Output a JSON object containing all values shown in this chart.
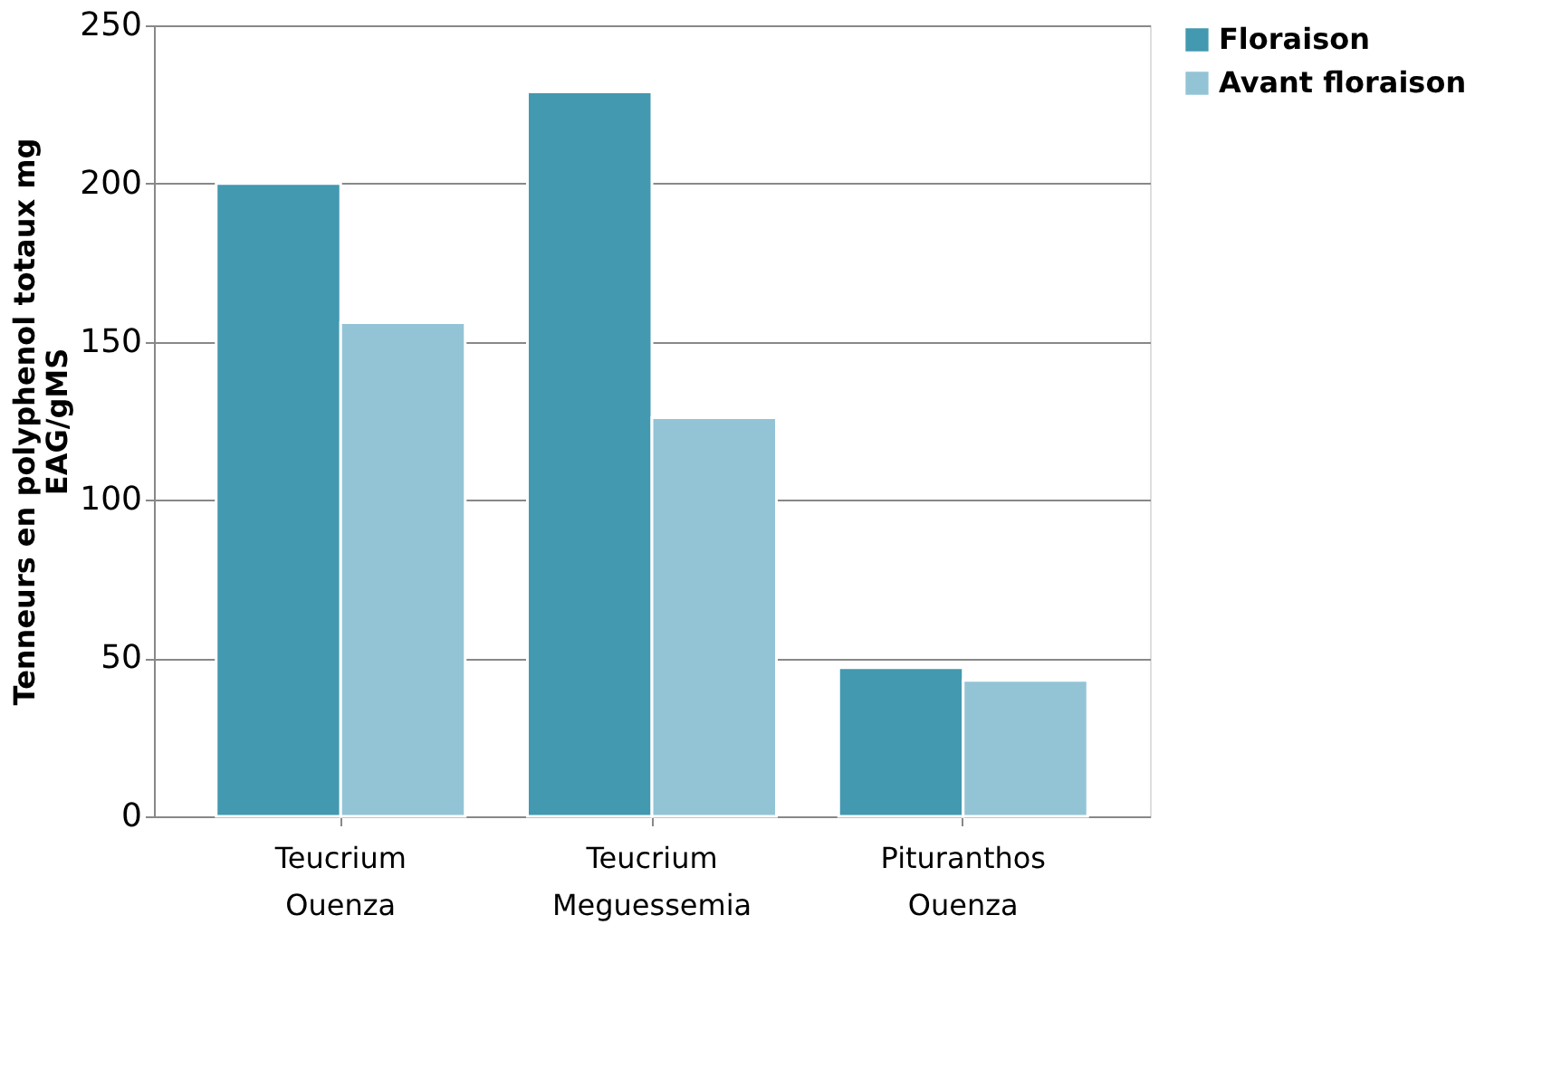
{
  "chart_data": {
    "type": "bar",
    "categories": [
      "Teucrium Ouenza",
      "Teucrium Meguessemia",
      "Pituranthos Ouenza"
    ],
    "ylabel": "Tenneurs en polyphenol totaux mg EAG/gMS",
    "ylim": [
      0,
      250
    ],
    "yticks": [
      0,
      50,
      100,
      150,
      200,
      250
    ],
    "grid": "y",
    "legend": "right",
    "series": [
      {
        "name": "Floraison",
        "color": "#4299b0",
        "values": [
          200,
          229,
          47
        ]
      },
      {
        "name": "Avant floraison",
        "color": "#93c4d6",
        "values": [
          156,
          126,
          43
        ]
      }
    ]
  }
}
